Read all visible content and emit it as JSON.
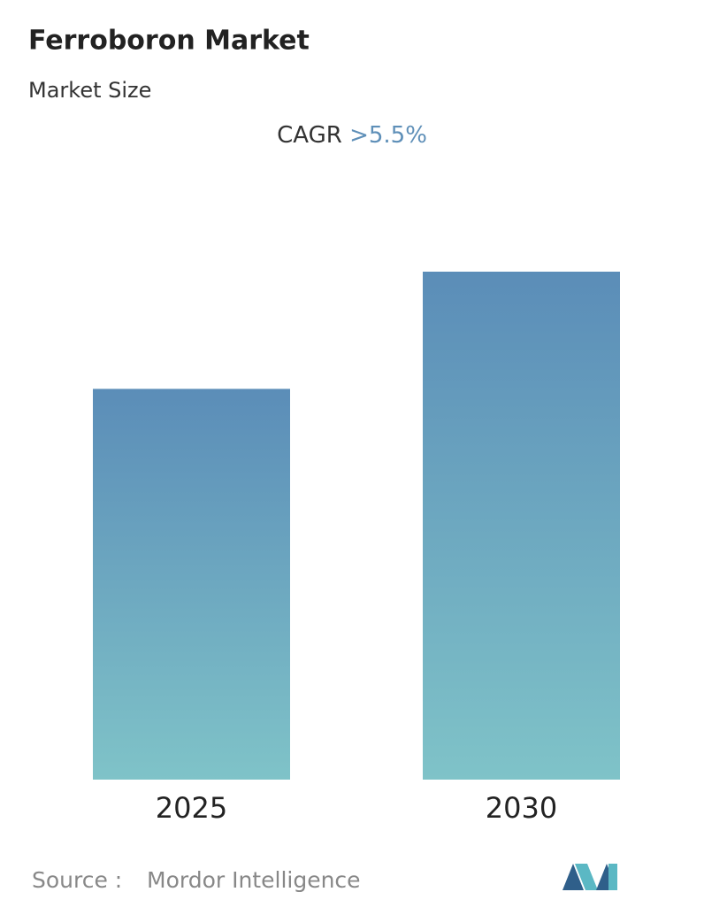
{
  "chart_data": {
    "type": "bar",
    "title": "Ferroboron Market",
    "subtitle": "Market Size",
    "cagr_label": "CAGR",
    "cagr_value": ">5.5%",
    "categories": [
      "2025",
      "2030"
    ],
    "values": [
      100,
      130
    ],
    "color_top": "#5b8db8",
    "color_bottom": "#7fc3c8",
    "source_label": "Source :",
    "source": "Mordor Intelligence"
  }
}
